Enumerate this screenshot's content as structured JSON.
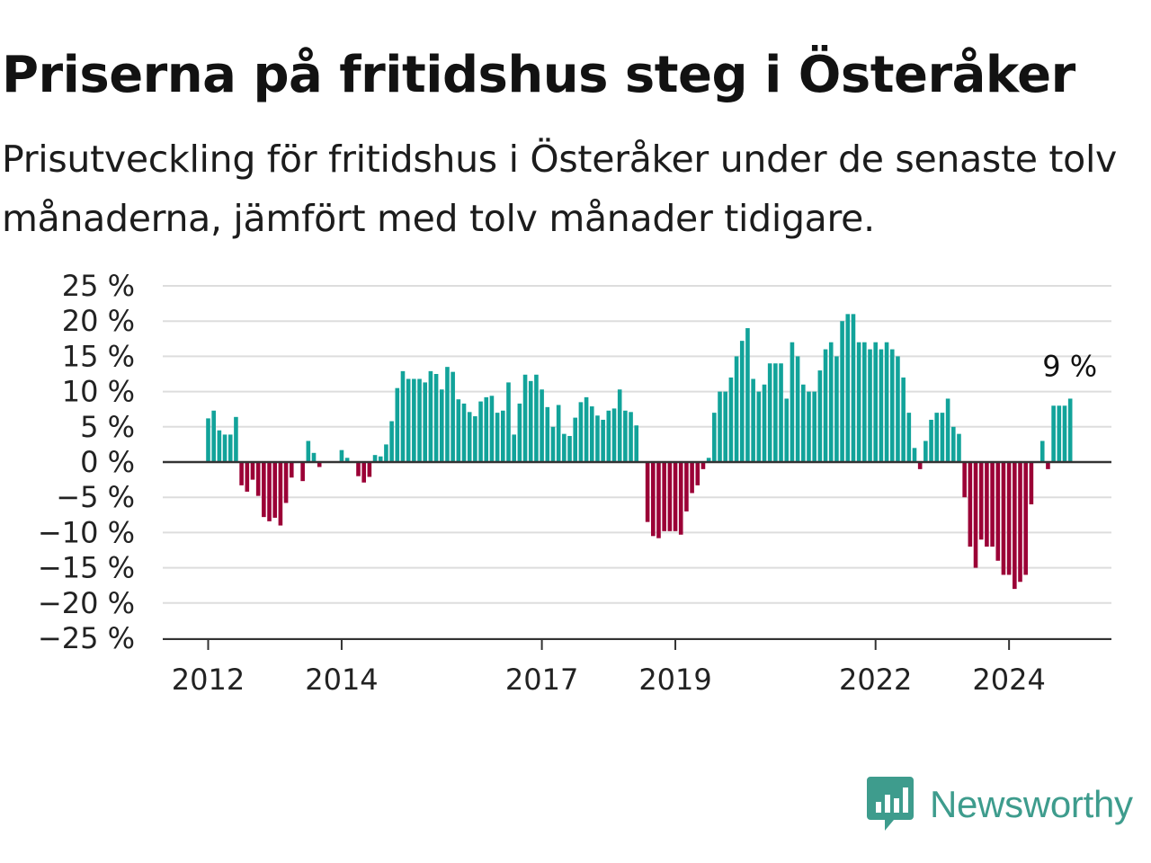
{
  "title": "Priserna på fritidshus steg i Österåker",
  "subtitle": "Prisutveckling för fritidshus i Österåker under de senaste tolv månaderna, jämfört med tolv månader tidigare.",
  "brand": {
    "name": "Newsworthy",
    "icon": "newsworthy-logo-icon",
    "color": "#3e9c8d"
  },
  "chart_data": {
    "type": "bar",
    "title": "",
    "xlabel": "",
    "ylabel": "",
    "x_start": "2012-01",
    "x_step": "1 month",
    "ylim": [
      -25,
      25
    ],
    "y_ticks": [
      25,
      20,
      15,
      10,
      5,
      0,
      -5,
      -10,
      -15,
      -20,
      -25
    ],
    "y_tick_labels": [
      "25 %",
      "20 %",
      "15 %",
      "10 %",
      "5 %",
      "0 %",
      "−5 %",
      "−10 %",
      "−15 %",
      "−20 %",
      "−25 %"
    ],
    "x_ticks": [
      "2012",
      "2014",
      "2017",
      "2019",
      "2022",
      "2024"
    ],
    "grid": true,
    "colors": {
      "positive": "#12a39a",
      "negative": "#9b0036",
      "zero_line": "#333333",
      "grid": "#dddddd"
    },
    "annotation": "9 %",
    "unit": "%",
    "values": [
      6.2,
      7.3,
      4.5,
      3.9,
      3.9,
      6.4,
      -3.3,
      -4.2,
      -2.5,
      -4.8,
      -7.8,
      -8.4,
      -7.9,
      -9.0,
      -5.8,
      -2.2,
      0,
      -2.7,
      3.0,
      1.3,
      -0.7,
      0,
      0,
      0,
      1.7,
      0.6,
      0,
      -2.0,
      -2.9,
      -2.1,
      1.0,
      0.8,
      2.5,
      5.8,
      10.5,
      12.9,
      11.8,
      11.8,
      11.8,
      11.3,
      12.9,
      12.5,
      10.3,
      13.5,
      12.8,
      8.9,
      8.3,
      7.1,
      6.5,
      8.6,
      9.2,
      9.4,
      7.0,
      7.3,
      11.3,
      3.9,
      8.3,
      12.4,
      11.5,
      12.4,
      10.3,
      7.8,
      5.0,
      8.1,
      4.0,
      3.7,
      6.3,
      8.5,
      9.2,
      7.9,
      6.6,
      6.0,
      7.3,
      7.6,
      10.3,
      7.3,
      7.1,
      5.2,
      0,
      -8.5,
      -10.5,
      -10.8,
      -9.8,
      -9.8,
      -9.8,
      -10.3,
      -7.0,
      -4.4,
      -3.3,
      -1.0,
      0.6,
      7.0,
      10.0,
      10.0,
      12.0,
      15.0,
      17.2,
      19.0,
      11.8,
      10.0,
      11.0,
      14.0,
      14.0,
      14.0,
      9.0,
      17.0,
      15.0,
      11.0,
      10.0,
      10.0,
      13.0,
      16.0,
      17.0,
      15.0,
      20.0,
      21.0,
      21.0,
      17.0,
      17.0,
      16.0,
      17.0,
      16.0,
      17.0,
      16.0,
      15.0,
      12.0,
      7.0,
      2.0,
      -1.0,
      3.0,
      6.0,
      7.0,
      7.0,
      9.0,
      5.0,
      4.0,
      -5.0,
      -12.0,
      -15.0,
      -11.0,
      -12.0,
      -12.0,
      -14.0,
      -16.0,
      -16.0,
      -18.0,
      -17.0,
      -16.0,
      -6.0,
      0,
      3.0,
      -1.0,
      8.0,
      8.0,
      8.0,
      9.0
    ]
  }
}
